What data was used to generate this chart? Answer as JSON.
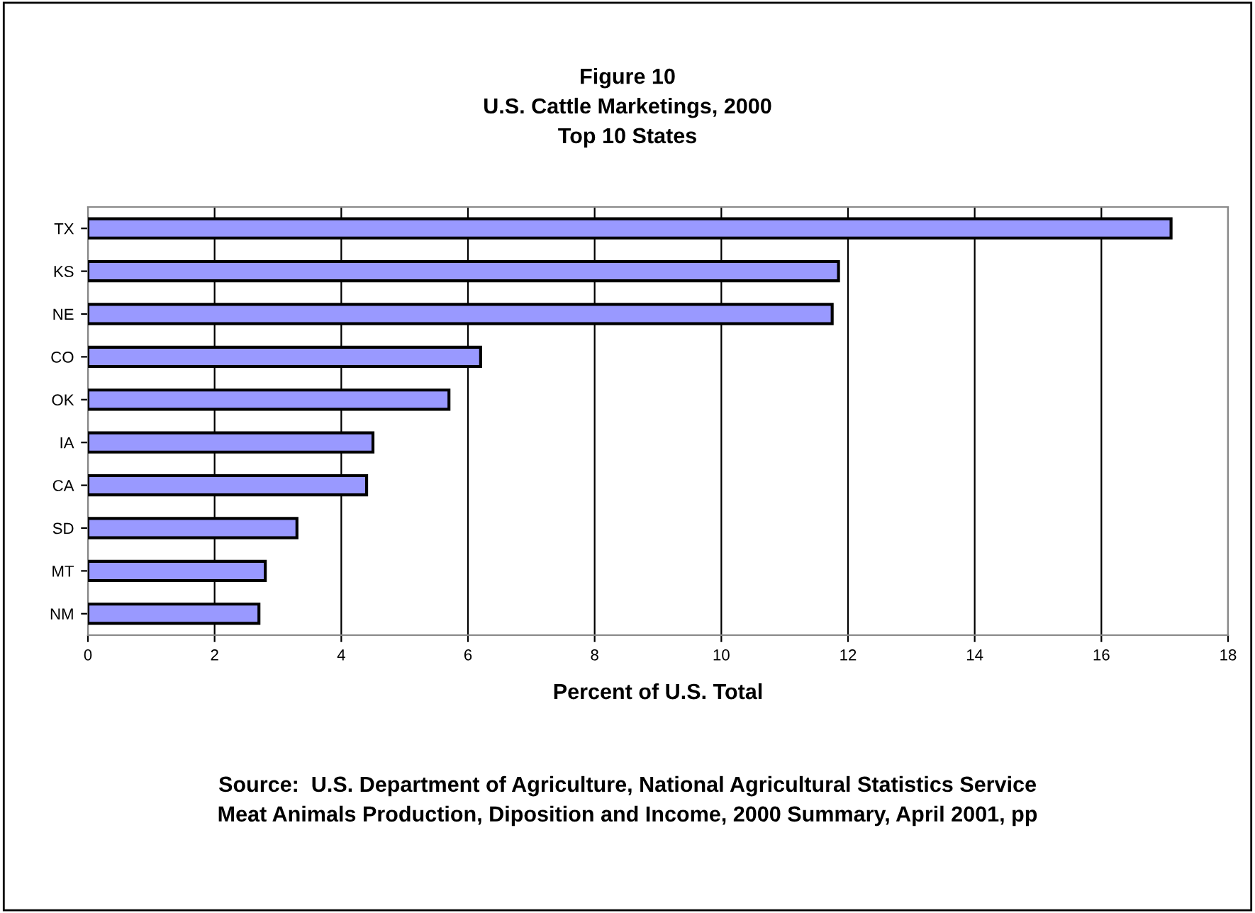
{
  "chart_data": {
    "type": "bar",
    "orientation": "horizontal",
    "title": "Figure 10\nU.S. Cattle Marketings, 2000\nTop 10 States",
    "xlabel": "Percent of U.S. Total",
    "categories": [
      "TX",
      "KS",
      "NE",
      "CO",
      "OK",
      "IA",
      "CA",
      "SD",
      "MT",
      "NM"
    ],
    "values": [
      17.1,
      11.85,
      11.75,
      6.2,
      5.7,
      4.5,
      4.4,
      3.3,
      2.8,
      2.7
    ],
    "color": "#9999ff",
    "xlim": [
      0,
      18
    ],
    "xticks": [
      0,
      2,
      4,
      6,
      8,
      10,
      12,
      14,
      16,
      18
    ],
    "grid": "x",
    "annotations": [
      "Source:  U.S. Department of Agriculture, National Agricultural Statistics Service\nMeat Animals Production, Diposition and Income, 2000 Summary, April 2001, pp"
    ]
  }
}
